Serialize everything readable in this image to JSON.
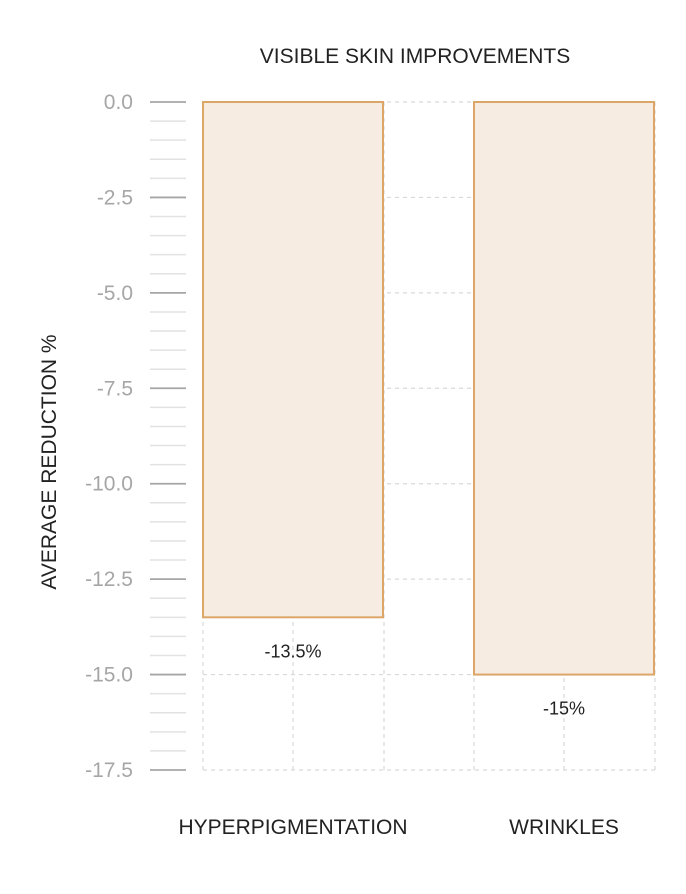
{
  "chart_data": {
    "type": "bar",
    "title": "VISIBLE SKIN IMPROVEMENTS",
    "ylabel": "AVERAGE REDUCTION %",
    "xlabel": "",
    "categories": [
      "HYPERPIGMENTATION",
      "WRINKLES"
    ],
    "values": [
      -13.5,
      -15
    ],
    "data_labels": [
      "-13.5%",
      "-15%"
    ],
    "ylim": [
      -17.5,
      0
    ],
    "yticks": [
      0,
      -2.5,
      -5,
      -7.5,
      -10,
      -12.5,
      -15,
      -17.5
    ],
    "ytick_labels": [
      "0.0",
      "-2.5",
      "-5.0",
      "-7.5",
      "-10.0",
      "-12.5",
      "-15.0",
      "-17.5"
    ],
    "minor_tick_step": 0.5,
    "grid": true,
    "colors": {
      "bar_fill": "#f7ece1",
      "bar_stroke": "#dba668",
      "grid": "#d9d9d9",
      "axis_tick": "#a6a6a6",
      "minor_tick": "#e2e2e2",
      "text": "#222222",
      "tick_text": "#a6a6a6"
    }
  }
}
